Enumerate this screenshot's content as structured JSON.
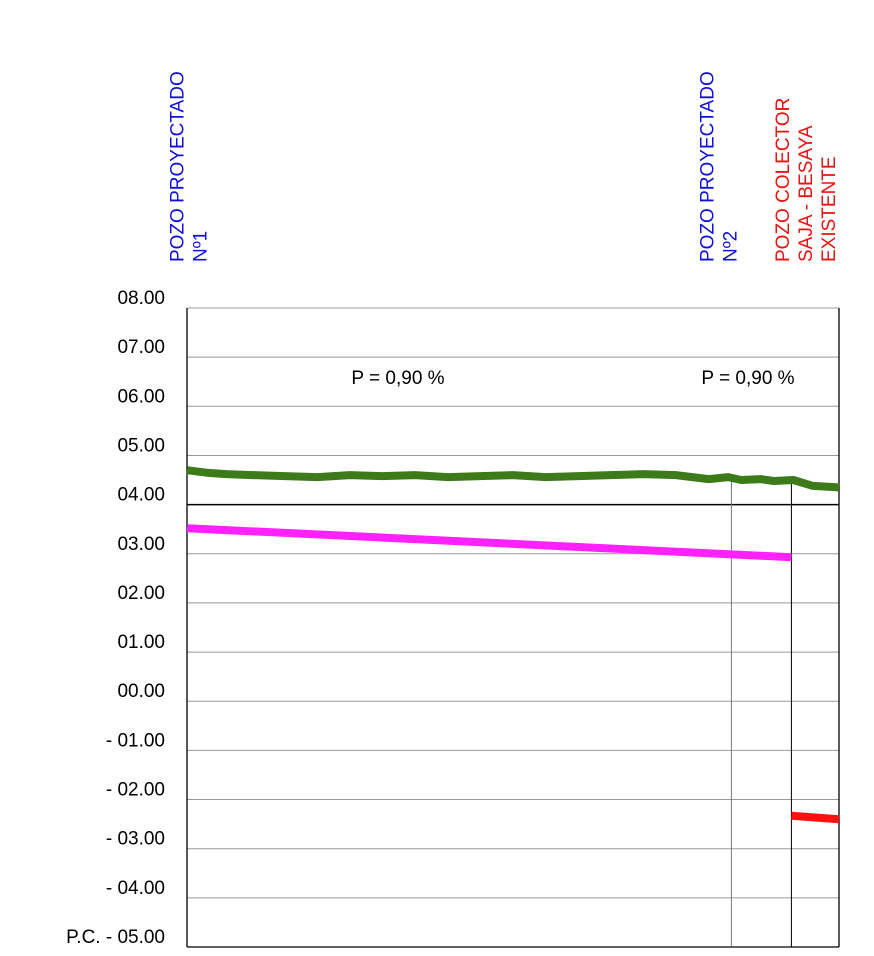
{
  "wells": [
    {
      "lines": [
        "POZO PROYECTADO",
        "Nº1"
      ],
      "color": "#1010dd",
      "station": 0
    },
    {
      "lines": [
        "POZO PROYECTADO",
        "Nº2"
      ],
      "color": "#1010dd",
      "station": 0.835
    },
    {
      "lines": [
        "POZO COLECTOR",
        "SAJA - BESAYA",
        "EXISTENTE"
      ],
      "color": "#ee1111",
      "station": 0.927
    }
  ],
  "y_labels": [
    "08.00",
    "07.00",
    "06.00",
    "05.00",
    "04.00",
    "03.00",
    "02.00",
    "01.00",
    "00.00",
    "- 01.00",
    "- 02.00",
    "- 03.00",
    "- 04.00",
    "P.C. - 05.00"
  ],
  "y_range": [
    -5,
    8
  ],
  "ref_level": 4,
  "slopes": [
    {
      "text": "P = 0,90 %"
    },
    {
      "text": "P = 0,90 %"
    }
  ],
  "colors": {
    "terrain": "#3d7a1a",
    "pipe": "#ff22ff",
    "existing": "#ff1111",
    "grid": "#999999"
  },
  "chart_data": {
    "type": "line",
    "xlabel": "",
    "ylabel": "",
    "ylim": [
      -5,
      8
    ],
    "x_range": [
      0,
      1
    ],
    "series": [
      {
        "x": [
          0,
          0.03,
          0.06,
          0.1,
          0.15,
          0.2,
          0.25,
          0.3,
          0.35,
          0.4,
          0.45,
          0.5,
          0.55,
          0.6,
          0.65,
          0.7,
          0.75,
          0.8,
          0.83,
          0.85,
          0.88,
          0.9,
          0.93,
          0.96,
          1.0
        ],
        "y": [
          4.7,
          4.65,
          4.62,
          4.6,
          4.58,
          4.56,
          4.6,
          4.58,
          4.6,
          4.56,
          4.58,
          4.6,
          4.56,
          4.58,
          4.6,
          4.62,
          4.6,
          4.52,
          4.56,
          4.5,
          4.52,
          4.48,
          4.5,
          4.38,
          4.35
        ]
      },
      {
        "x": [
          0,
          0.927
        ],
        "y": [
          3.52,
          2.93
        ]
      },
      {
        "x": [
          0.927,
          1.0
        ],
        "y": [
          -2.33,
          -2.4
        ]
      }
    ]
  }
}
